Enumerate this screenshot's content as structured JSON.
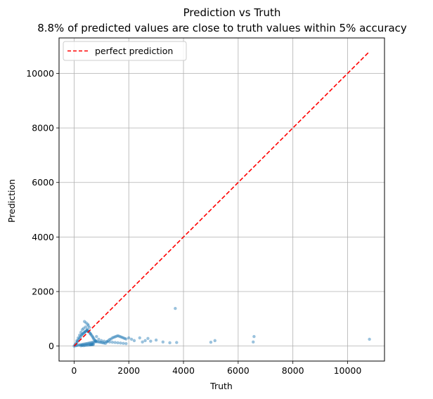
{
  "chart_data": {
    "type": "scatter",
    "title": "Prediction vs Truth",
    "subtitle": "8.8% of predicted values are close to truth values within 5% accuracy",
    "xlabel": "Truth",
    "ylabel": "Prediction",
    "xlim": [
      -550,
      11350
    ],
    "ylim": [
      -550,
      11300
    ],
    "xticks": [
      0,
      2000,
      4000,
      6000,
      8000,
      10000
    ],
    "yticks": [
      0,
      2000,
      4000,
      6000,
      8000,
      10000
    ],
    "grid": true,
    "legend": {
      "position": "top-left",
      "entries": [
        "perfect prediction"
      ]
    },
    "colors": {
      "points": "#1f77b4",
      "perfect_line": "#ff0000",
      "grid": "#b0b0b0"
    },
    "perfect_line": {
      "x": [
        0,
        10800
      ],
      "y": [
        0,
        10800
      ]
    },
    "points": {
      "x": [
        0,
        30,
        60,
        90,
        120,
        150,
        180,
        210,
        240,
        270,
        300,
        320,
        350,
        380,
        400,
        420,
        450,
        480,
        500,
        520,
        550,
        580,
        600,
        620,
        650,
        680,
        700,
        720,
        750,
        780,
        800,
        850,
        900,
        950,
        1000,
        1050,
        1100,
        1150,
        1200,
        1250,
        1300,
        1350,
        1400,
        1450,
        1500,
        1550,
        1600,
        1650,
        1700,
        1750,
        1800,
        1850,
        1900,
        2000,
        2100,
        2200,
        2400,
        2500,
        2600,
        2700,
        2800,
        3000,
        3250,
        3500,
        3700,
        3750,
        5000,
        5150,
        6550,
        6580,
        10800,
        50,
        100,
        150,
        200,
        250,
        300,
        350,
        400,
        450,
        500,
        550,
        600,
        650,
        700,
        750,
        800,
        350,
        420,
        480,
        520,
        560,
        380,
        440,
        500,
        300,
        250,
        200,
        150,
        100,
        600,
        650,
        700,
        820,
        900,
        1000,
        1100,
        1200,
        1300,
        1400,
        1500,
        1600,
        1700,
        1800,
        1900,
        250,
        300,
        350,
        400,
        450,
        500,
        550,
        600,
        650,
        700
      ],
      "y": [
        0,
        40,
        80,
        120,
        160,
        200,
        250,
        300,
        350,
        400,
        430,
        450,
        480,
        500,
        520,
        540,
        560,
        580,
        560,
        540,
        520,
        480,
        450,
        420,
        380,
        340,
        300,
        260,
        220,
        200,
        180,
        160,
        150,
        140,
        130,
        120,
        110,
        100,
        160,
        200,
        240,
        260,
        300,
        320,
        340,
        360,
        380,
        360,
        340,
        320,
        300,
        280,
        260,
        300,
        250,
        200,
        300,
        150,
        200,
        280,
        180,
        220,
        150,
        120,
        1380,
        130,
        140,
        200,
        150,
        350,
        250,
        10,
        20,
        30,
        40,
        50,
        60,
        70,
        80,
        90,
        100,
        110,
        120,
        130,
        140,
        150,
        160,
        650,
        700,
        620,
        750,
        680,
        900,
        850,
        800,
        600,
        500,
        400,
        300,
        200,
        50,
        60,
        80,
        350,
        250,
        200,
        180,
        160,
        150,
        140,
        130,
        120,
        110,
        100,
        90,
        10,
        20,
        15,
        25,
        30,
        35,
        40,
        45,
        50,
        55
      ]
    }
  }
}
